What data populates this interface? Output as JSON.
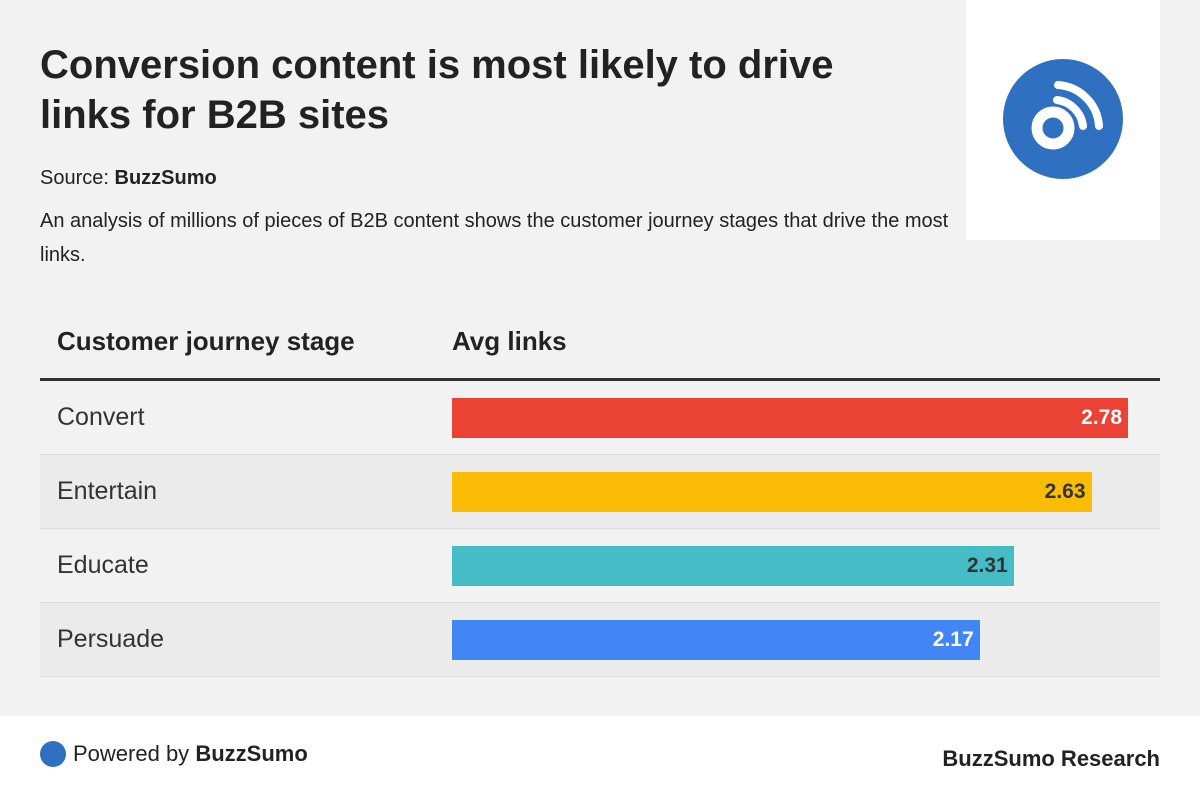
{
  "title": "Conversion content is most likely to drive links for B2B sites",
  "source_label": "Source:",
  "source_name": "BuzzSumo",
  "description": "An analysis of millions of pieces of B2B content shows the customer journey stages that drive the most links.",
  "logo_icon": "rss-signal-icon",
  "colors": {
    "logo": "#3070c0"
  },
  "chart_data": {
    "type": "bar",
    "orientation": "horizontal",
    "columns": [
      "Customer journey stage",
      "Avg links"
    ],
    "categories": [
      "Convert",
      "Entertain",
      "Educate",
      "Persuade"
    ],
    "values": [
      2.78,
      2.63,
      2.31,
      2.17
    ],
    "value_labels": [
      "2.78",
      "2.63",
      "2.31",
      "2.17"
    ],
    "colors": [
      "#ea4335",
      "#fbbc05",
      "#46bdc6",
      "#4285f4"
    ],
    "label_colors": [
      "#ffffff",
      "#333333",
      "#333333",
      "#ffffff"
    ],
    "xlim": [
      0,
      2.78
    ]
  },
  "footer": {
    "powered_prefix": "Powered by",
    "powered_brand": "BuzzSumo",
    "right": "BuzzSumo Research"
  }
}
